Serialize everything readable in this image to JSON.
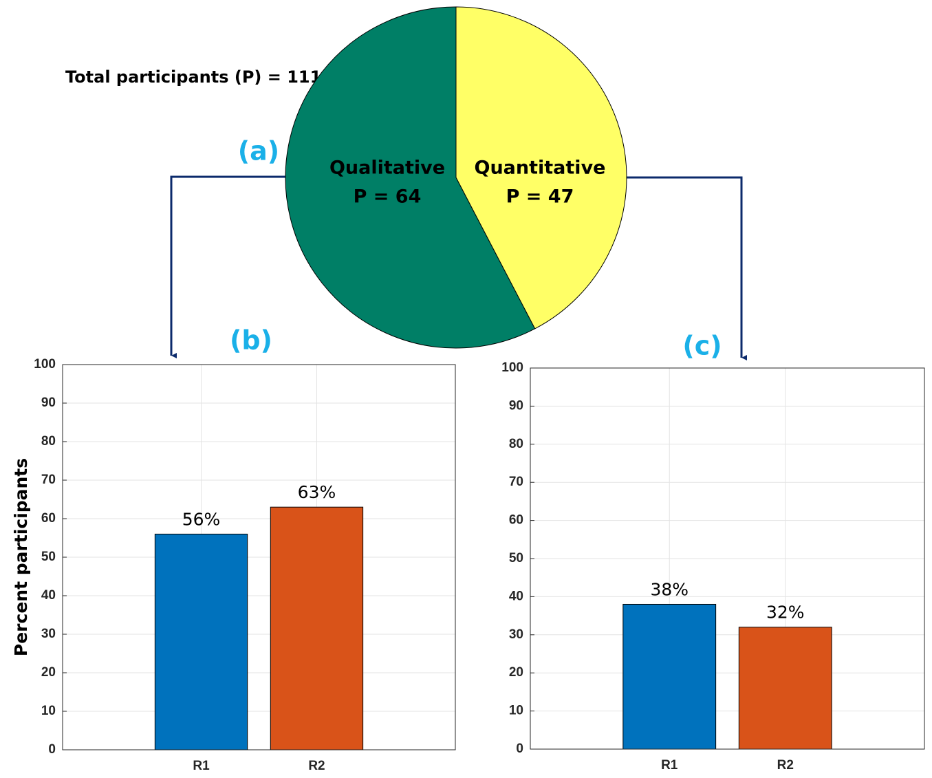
{
  "chart_data": [
    {
      "type": "pie",
      "annotation": "Total participants (P) = 111",
      "panel_label": "(a)",
      "categories": [
        "Qualitative",
        "Quantitative"
      ],
      "values": [
        64,
        47
      ],
      "value_labels": [
        "P = 64",
        "P = 47"
      ],
      "colors": [
        "#007f66",
        "#ffff66"
      ]
    },
    {
      "type": "bar",
      "panel_label": "(b)",
      "ylabel": "Percent participants",
      "categories": [
        "R1",
        "R2"
      ],
      "values": [
        56,
        63
      ],
      "value_labels": [
        "56%",
        "63%"
      ],
      "colors": [
        "#0072bd",
        "#d95319"
      ],
      "ylim": [
        0,
        100
      ],
      "yticks": [
        0,
        10,
        20,
        30,
        40,
        50,
        60,
        70,
        80,
        90,
        100
      ],
      "grid": true
    },
    {
      "type": "bar",
      "panel_label": "(c)",
      "categories": [
        "R1",
        "R2"
      ],
      "values": [
        38,
        32
      ],
      "value_labels": [
        "38%",
        "32%"
      ],
      "colors": [
        "#0072bd",
        "#d95319"
      ],
      "ylim": [
        0,
        100
      ],
      "yticks": [
        0,
        10,
        20,
        30,
        40,
        50,
        60,
        70,
        80,
        90,
        100
      ],
      "grid": true
    }
  ]
}
